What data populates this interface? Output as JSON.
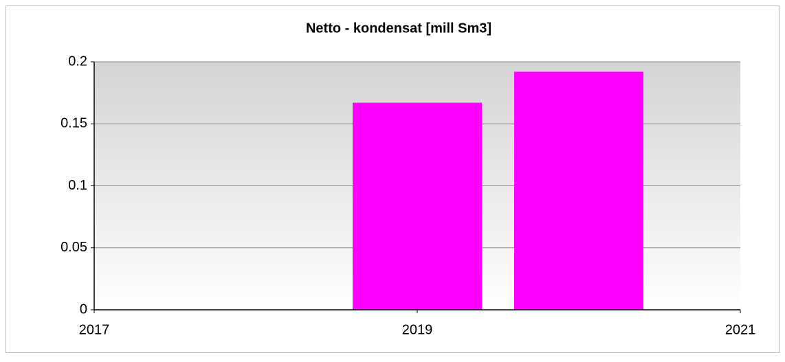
{
  "chart_data": {
    "type": "bar",
    "title": "Netto - kondensat [mill Sm3]",
    "x": [
      2019,
      2020
    ],
    "values": [
      0.167,
      0.192
    ],
    "color": "#ff00ff",
    "xlim": [
      2017,
      2021
    ],
    "xticks": [
      2017,
      2019,
      2021
    ],
    "ylim": [
      0,
      0.2
    ],
    "yticks": [
      0,
      0.05,
      0.1,
      0.15,
      0.2
    ],
    "grid": true
  }
}
